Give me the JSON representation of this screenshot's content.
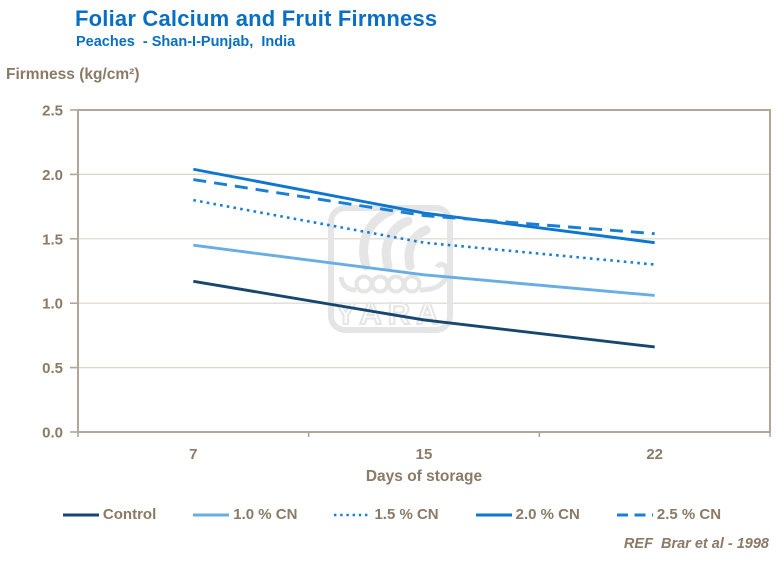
{
  "header": {
    "title": "Foliar Calcium and Fruit Firmness",
    "subtitle": "Peaches  - Shan-I-Punjab,  India"
  },
  "footer": {
    "reference": "REF  Brar et al - 1998"
  },
  "watermark": {
    "text": "YARA"
  },
  "colors": {
    "title_blue": "#0a6fc2",
    "axis_text": "#8a7a66",
    "gridline": "#dcd5c8",
    "frame": "#b2a797",
    "watermark": "#e5e5e5"
  },
  "chart_data": {
    "type": "line",
    "title": "Foliar Calcium and Fruit Firmness",
    "subtitle": "Peaches - Shan-I-Punjab, India",
    "xlabel": "Days of storage",
    "ylabel": "Firmness (kg/cm²)",
    "categories": [
      "7",
      "15",
      "22"
    ],
    "x_values": [
      7,
      15,
      22
    ],
    "series": [
      {
        "name": "Control",
        "values": [
          1.17,
          0.87,
          0.66
        ],
        "color": "#17466e",
        "style": "solid"
      },
      {
        "name": "1.0 % CN",
        "values": [
          1.45,
          1.22,
          1.06
        ],
        "color": "#6aade4",
        "style": "solid"
      },
      {
        "name": "1.5 % CN",
        "values": [
          1.8,
          1.47,
          1.3
        ],
        "color": "#1a7fd4",
        "style": "dotted"
      },
      {
        "name": "2.0 % CN",
        "values": [
          2.04,
          1.7,
          1.47
        ],
        "color": "#0c76d0",
        "style": "solid"
      },
      {
        "name": "2.5 % CN",
        "values": [
          1.96,
          1.68,
          1.54
        ],
        "color": "#1a7fd4",
        "style": "dashed"
      }
    ],
    "ylim": [
      0,
      2.5
    ],
    "yticks": [
      "0.0",
      "0.5",
      "1.0",
      "1.5",
      "2.0",
      "2.5"
    ],
    "grid": true,
    "legend_position": "bottom"
  }
}
